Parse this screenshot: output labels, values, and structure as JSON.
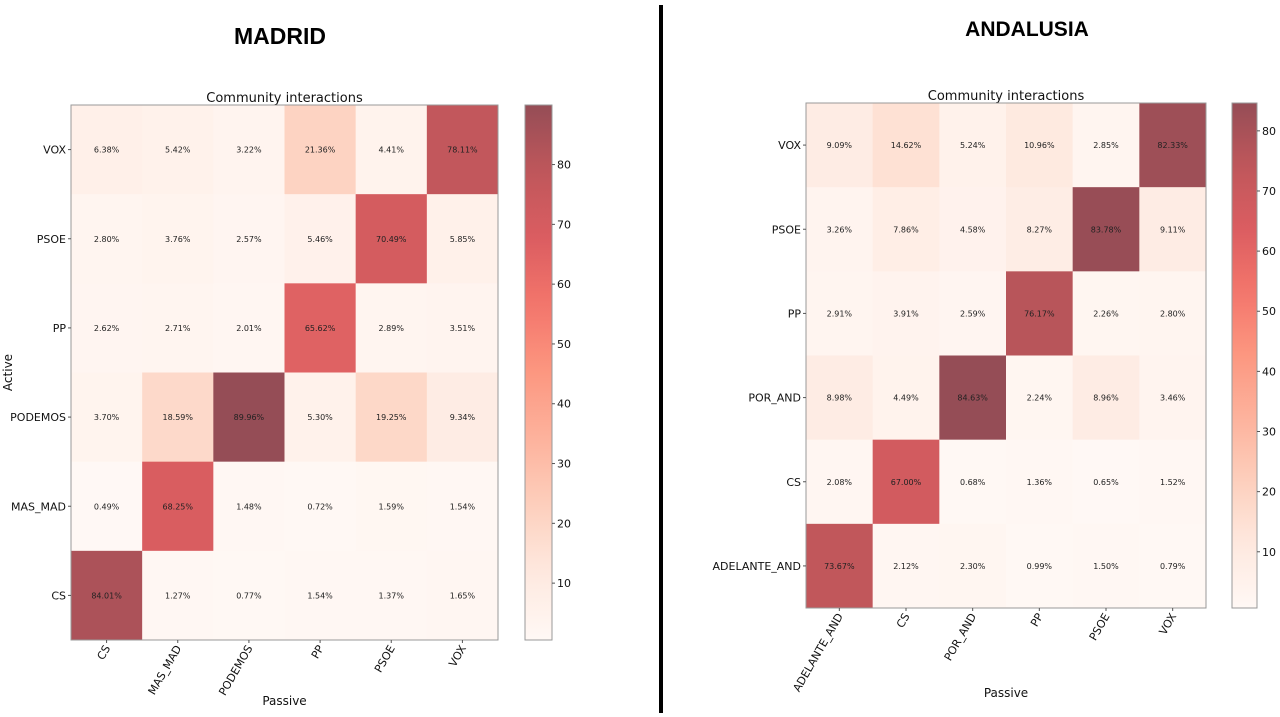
{
  "panels": [
    {
      "id": "madrid",
      "title": "MADRID"
    },
    {
      "id": "andalusia",
      "title": "ANDALUSIA"
    }
  ],
  "chart_data": [
    {
      "type": "heatmap",
      "panel_title": "MADRID",
      "title": "Community interactions",
      "xlabel": "Passive",
      "ylabel": "Active",
      "x_categories": [
        "CS",
        "MAS_MAD",
        "PODEMOS",
        "PP",
        "PSOE",
        "VOX"
      ],
      "y_categories": [
        "VOX",
        "PSOE",
        "PP",
        "PODEMOS",
        "MAS_MAD",
        "CS"
      ],
      "values": [
        [
          6.38,
          5.42,
          3.22,
          21.36,
          4.41,
          78.11
        ],
        [
          2.8,
          3.76,
          2.57,
          5.46,
          70.49,
          5.85
        ],
        [
          2.62,
          2.71,
          2.01,
          65.62,
          2.89,
          3.51
        ],
        [
          3.7,
          18.59,
          89.96,
          5.3,
          19.25,
          9.34
        ],
        [
          0.49,
          68.25,
          1.48,
          0.72,
          1.59,
          1.54
        ],
        [
          84.01,
          1.27,
          0.77,
          1.54,
          1.37,
          1.65
        ]
      ],
      "value_format": "percent_2dp",
      "colorbar": {
        "range": [
          0.49,
          89.96
        ],
        "ticks": [
          10,
          20,
          30,
          40,
          50,
          60,
          70,
          80
        ],
        "colormap": "Reds"
      }
    },
    {
      "type": "heatmap",
      "panel_title": "ANDALUSIA",
      "title": "Community interactions",
      "xlabel": "Passive",
      "ylabel": "",
      "x_categories": [
        "ADELANTE_AND",
        "CS",
        "POR_AND",
        "PP",
        "PSOE",
        "VOX"
      ],
      "y_categories": [
        "VOX",
        "PSOE",
        "PP",
        "POR_AND",
        "CS",
        "ADELANTE_AND"
      ],
      "values": [
        [
          9.09,
          14.62,
          5.24,
          10.96,
          2.85,
          82.33
        ],
        [
          3.26,
          7.86,
          4.58,
          8.27,
          83.78,
          9.11
        ],
        [
          2.91,
          3.91,
          2.59,
          76.17,
          2.26,
          2.8
        ],
        [
          8.98,
          4.49,
          84.63,
          2.24,
          8.96,
          3.46
        ],
        [
          2.08,
          67.0,
          0.68,
          1.36,
          0.65,
          1.52
        ],
        [
          73.67,
          2.12,
          2.3,
          0.99,
          1.5,
          0.79
        ]
      ],
      "value_format": "percent_2dp",
      "colorbar": {
        "range": [
          0.65,
          84.63
        ],
        "ticks": [
          10,
          20,
          30,
          40,
          50,
          60,
          70,
          80
        ],
        "colormap": "Reds"
      }
    }
  ]
}
